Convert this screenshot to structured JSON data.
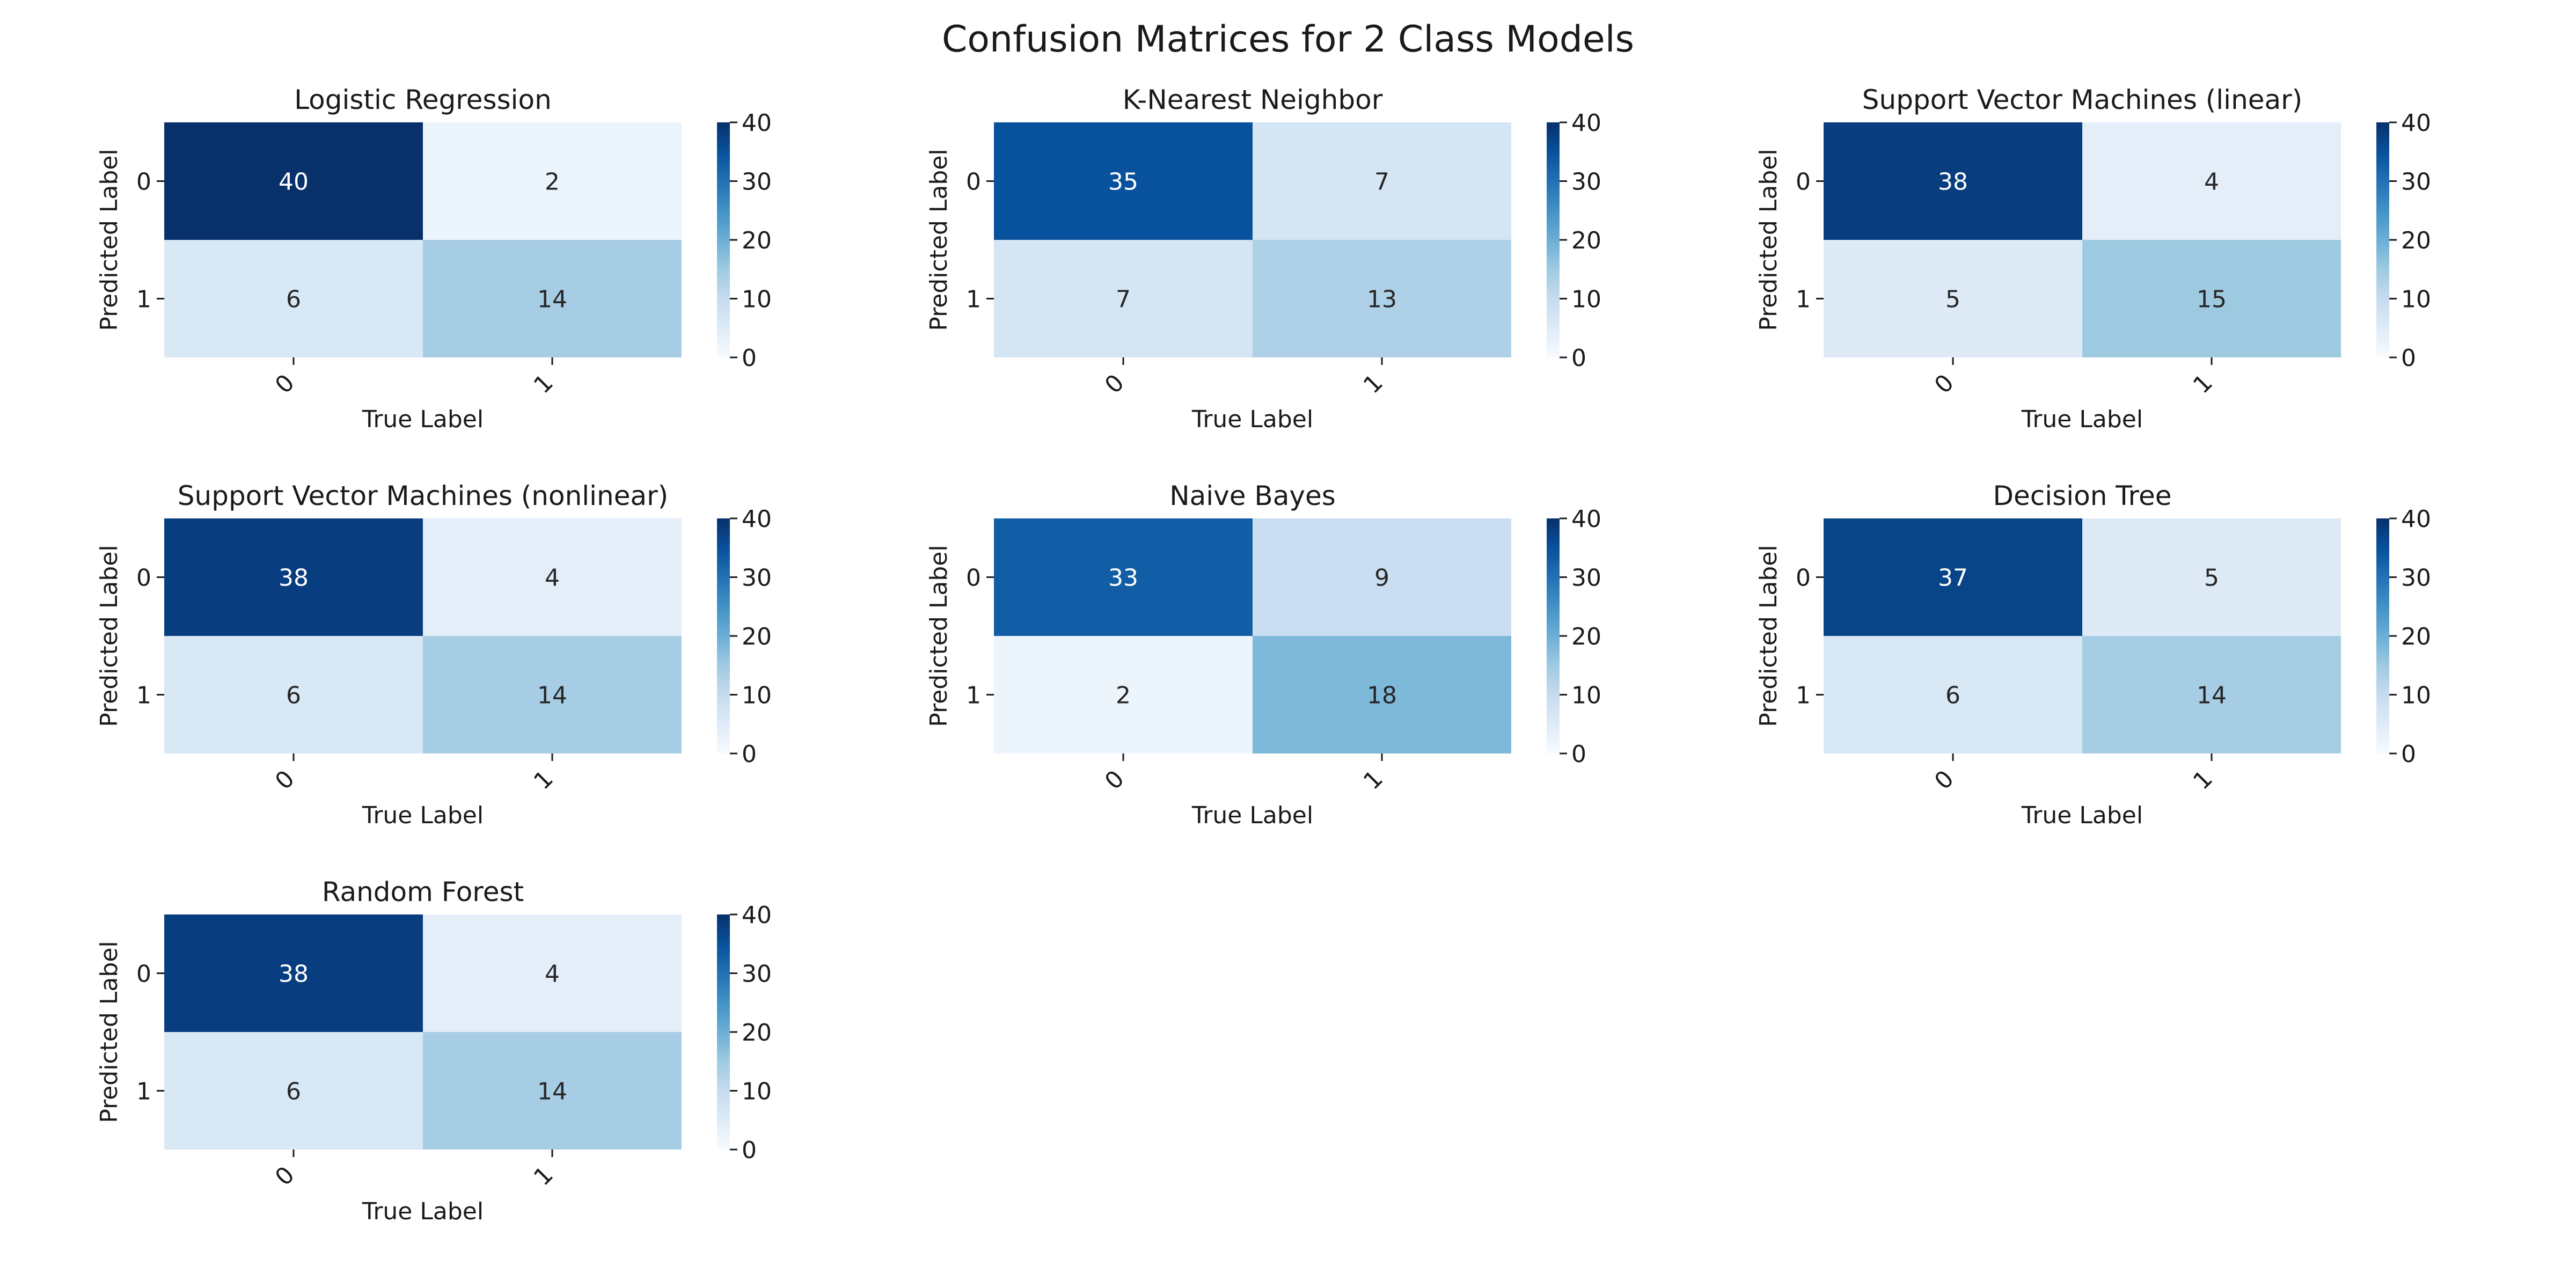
{
  "title": "Confusion Matrices for 2 Class Models",
  "colors": {
    "colormap": "Blues",
    "low": "#f7fbff",
    "high": "#08306b",
    "text_dark": "#262626",
    "text_light": "#ffffff"
  },
  "chart_data": [
    {
      "type": "heatmap",
      "title": "Logistic Regression",
      "xlabel": "True Label",
      "ylabel": "Predicted Label",
      "x_categories": [
        "0",
        "1"
      ],
      "y_categories": [
        "0",
        "1"
      ],
      "values": [
        [
          40,
          2
        ],
        [
          6,
          14
        ]
      ],
      "colorbar": {
        "range": [
          0,
          40
        ],
        "ticks": [
          "0",
          "10",
          "20",
          "30",
          "40"
        ]
      }
    },
    {
      "type": "heatmap",
      "title": "K-Nearest Neighbor",
      "xlabel": "True Label",
      "ylabel": "Predicted Label",
      "x_categories": [
        "0",
        "1"
      ],
      "y_categories": [
        "0",
        "1"
      ],
      "values": [
        [
          35,
          7
        ],
        [
          7,
          13
        ]
      ],
      "colorbar": {
        "range": [
          0,
          40
        ],
        "ticks": [
          "0",
          "10",
          "20",
          "30",
          "40"
        ]
      }
    },
    {
      "type": "heatmap",
      "title": "Support Vector Machines (linear)",
      "xlabel": "True Label",
      "ylabel": "Predicted Label",
      "x_categories": [
        "0",
        "1"
      ],
      "y_categories": [
        "0",
        "1"
      ],
      "values": [
        [
          38,
          4
        ],
        [
          5,
          15
        ]
      ],
      "colorbar": {
        "range": [
          0,
          40
        ],
        "ticks": [
          "0",
          "10",
          "20",
          "30",
          "40"
        ]
      }
    },
    {
      "type": "heatmap",
      "title": "Support Vector Machines (nonlinear)",
      "xlabel": "True Label",
      "ylabel": "Predicted Label",
      "x_categories": [
        "0",
        "1"
      ],
      "y_categories": [
        "0",
        "1"
      ],
      "values": [
        [
          38,
          4
        ],
        [
          6,
          14
        ]
      ],
      "colorbar": {
        "range": [
          0,
          40
        ],
        "ticks": [
          "0",
          "10",
          "20",
          "30",
          "40"
        ]
      }
    },
    {
      "type": "heatmap",
      "title": "Naive Bayes",
      "xlabel": "True Label",
      "ylabel": "Predicted Label",
      "x_categories": [
        "0",
        "1"
      ],
      "y_categories": [
        "0",
        "1"
      ],
      "values": [
        [
          33,
          9
        ],
        [
          2,
          18
        ]
      ],
      "colorbar": {
        "range": [
          0,
          40
        ],
        "ticks": [
          "0",
          "10",
          "20",
          "30",
          "40"
        ]
      }
    },
    {
      "type": "heatmap",
      "title": "Decision Tree",
      "xlabel": "True Label",
      "ylabel": "Predicted Label",
      "x_categories": [
        "0",
        "1"
      ],
      "y_categories": [
        "0",
        "1"
      ],
      "values": [
        [
          37,
          5
        ],
        [
          6,
          14
        ]
      ],
      "colorbar": {
        "range": [
          0,
          40
        ],
        "ticks": [
          "0",
          "10",
          "20",
          "30",
          "40"
        ]
      }
    },
    {
      "type": "heatmap",
      "title": "Random Forest",
      "xlabel": "True Label",
      "ylabel": "Predicted Label",
      "x_categories": [
        "0",
        "1"
      ],
      "y_categories": [
        "0",
        "1"
      ],
      "values": [
        [
          38,
          4
        ],
        [
          6,
          14
        ]
      ],
      "colorbar": {
        "range": [
          0,
          40
        ],
        "ticks": [
          "0",
          "10",
          "20",
          "30",
          "40"
        ]
      }
    }
  ]
}
